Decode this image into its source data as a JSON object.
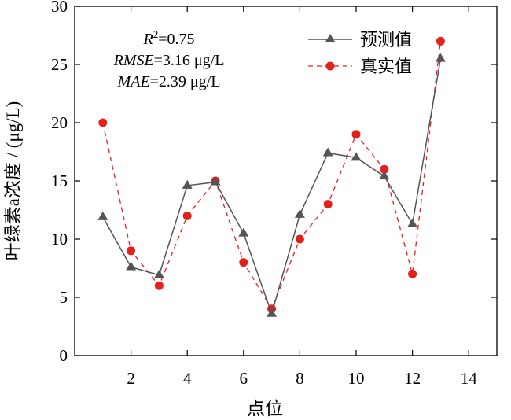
{
  "chart_data": {
    "type": "line",
    "xlabel": "点位",
    "ylabel": "叶绿素a浓度 / (μg/L)",
    "xlim": [
      0,
      15
    ],
    "ylim": [
      0,
      30
    ],
    "xticks": [
      2,
      4,
      6,
      8,
      10,
      12,
      14
    ],
    "yticks": [
      0,
      5,
      10,
      15,
      20,
      25,
      30
    ],
    "grid": false,
    "legend_position": "top-right",
    "x": [
      1,
      2,
      3,
      4,
      5,
      6,
      7,
      8,
      9,
      10,
      11,
      12,
      13
    ],
    "series": [
      {
        "name": "预测值",
        "color": "#555555",
        "marker": "triangle",
        "line": "solid",
        "values": [
          11.9,
          7.6,
          6.9,
          14.6,
          14.9,
          10.5,
          3.6,
          12.1,
          17.4,
          17.0,
          15.4,
          11.3,
          25.5
        ]
      },
      {
        "name": "真实值",
        "color": "#e3201b",
        "marker": "circle",
        "line": "dashed",
        "values": [
          20.0,
          9.0,
          6.0,
          12.0,
          15.0,
          8.0,
          4.0,
          10.0,
          13.0,
          19.0,
          16.0,
          7.0,
          27.0
        ]
      }
    ],
    "annotations": {
      "r2_label": "R",
      "r2_sup": "2",
      "r2_value": "=0.75",
      "rmse_label": "RMSE",
      "rmse_value": "=3.16 μg/L",
      "mae_label": "MAE",
      "mae_value": "=2.39 μg/L"
    }
  }
}
